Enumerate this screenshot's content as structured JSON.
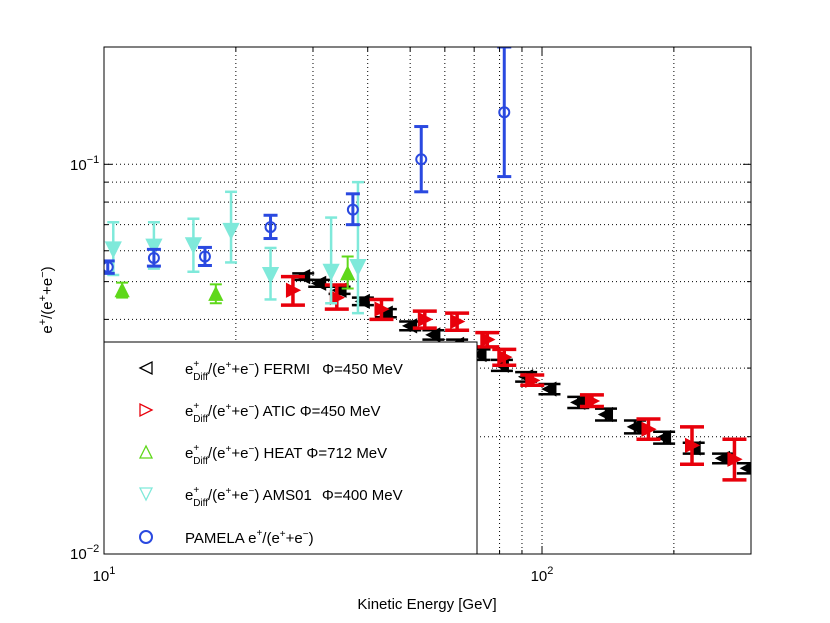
{
  "chart_data": {
    "type": "scatter",
    "xscale": "log",
    "yscale": "log",
    "xlim": [
      10,
      300
    ],
    "ylim": [
      0.01,
      0.2
    ],
    "xlabel": "Kinetic Energy [GeV]",
    "ylabel_parts": {
      "a": "e",
      "a_sup": "+",
      "b": "/(e",
      "b_sup1": "+",
      "c": "+e",
      "c_sup": "−",
      "d": ")"
    },
    "x_tick_labels": [
      {
        "base": "10",
        "exp": "1",
        "value": 10
      },
      {
        "base": "10",
        "exp": "2",
        "value": 100
      }
    ],
    "y_tick_labels": [
      {
        "base": "10",
        "exp": "−2",
        "value": 0.01
      },
      {
        "base": "10",
        "exp": "−1",
        "value": 0.1
      }
    ],
    "grid": true,
    "legend_position": "lower-left",
    "series": [
      {
        "name": "FERMI",
        "marker": "triangle-left",
        "color": "#000000",
        "label": {
          "main": "e",
          "sup": "+",
          "sub": "Diff",
          "rest": "/(e",
          "rest_sup": "+",
          "rest2": "+e",
          "rest2_sup": "−",
          "rest3": ") FERMI",
          "phi": "Φ=450 MeV"
        },
        "points": [
          {
            "x": 28.5,
            "y": 0.0515,
            "lo": 0.0505,
            "hi": 0.0525
          },
          {
            "x": 31.0,
            "y": 0.0495,
            "lo": 0.0485,
            "hi": 0.0505
          },
          {
            "x": 34.5,
            "y": 0.0475,
            "lo": 0.0465,
            "hi": 0.0485
          },
          {
            "x": 39.0,
            "y": 0.0445,
            "lo": 0.0435,
            "hi": 0.0455
          },
          {
            "x": 44.0,
            "y": 0.0415,
            "lo": 0.0405,
            "hi": 0.0425
          },
          {
            "x": 50.0,
            "y": 0.0385,
            "lo": 0.0375,
            "hi": 0.0395
          },
          {
            "x": 56.5,
            "y": 0.0365,
            "lo": 0.0355,
            "hi": 0.0375
          },
          {
            "x": 64.0,
            "y": 0.0345,
            "lo": 0.0335,
            "hi": 0.0355
          },
          {
            "x": 72.0,
            "y": 0.0325,
            "lo": 0.0315,
            "hi": 0.0335
          },
          {
            "x": 81.0,
            "y": 0.0305,
            "lo": 0.0295,
            "hi": 0.0315
          },
          {
            "x": 92.0,
            "y": 0.0285,
            "lo": 0.0277,
            "hi": 0.0293
          },
          {
            "x": 104.0,
            "y": 0.0265,
            "lo": 0.0257,
            "hi": 0.0273
          },
          {
            "x": 121.0,
            "y": 0.0245,
            "lo": 0.0237,
            "hi": 0.0253
          },
          {
            "x": 140.0,
            "y": 0.0228,
            "lo": 0.022,
            "hi": 0.0236
          },
          {
            "x": 163.0,
            "y": 0.0212,
            "lo": 0.0204,
            "hi": 0.022
          },
          {
            "x": 190.0,
            "y": 0.0199,
            "lo": 0.0192,
            "hi": 0.0206
          },
          {
            "x": 222.0,
            "y": 0.0187,
            "lo": 0.0181,
            "hi": 0.0193
          },
          {
            "x": 259.0,
            "y": 0.0176,
            "lo": 0.0171,
            "hi": 0.0181
          },
          {
            "x": 295.0,
            "y": 0.0166,
            "lo": 0.0161,
            "hi": 0.0171
          }
        ]
      },
      {
        "name": "ATIC",
        "marker": "triangle-right",
        "color": "#e8000b",
        "label": {
          "main": "e",
          "sup": "+",
          "sub": "Diff",
          "rest": "/(e",
          "rest_sup": "+",
          "rest2": "+e",
          "rest2_sup": "−",
          "rest3": ") ATIC",
          "phi": "Φ=450 MeV"
        },
        "points": [
          {
            "x": 27.0,
            "y": 0.0475,
            "lo": 0.0435,
            "hi": 0.0515
          },
          {
            "x": 34.0,
            "y": 0.0455,
            "lo": 0.0425,
            "hi": 0.049
          },
          {
            "x": 43.0,
            "y": 0.0425,
            "lo": 0.04,
            "hi": 0.045
          },
          {
            "x": 54.0,
            "y": 0.04,
            "lo": 0.038,
            "hi": 0.042
          },
          {
            "x": 64.0,
            "y": 0.0395,
            "lo": 0.0375,
            "hi": 0.0415
          },
          {
            "x": 75.0,
            "y": 0.0355,
            "lo": 0.034,
            "hi": 0.037
          },
          {
            "x": 82.0,
            "y": 0.032,
            "lo": 0.0305,
            "hi": 0.0335
          },
          {
            "x": 95.0,
            "y": 0.0279,
            "lo": 0.0271,
            "hi": 0.0288
          },
          {
            "x": 130.0,
            "y": 0.0247,
            "lo": 0.0239,
            "hi": 0.0256
          },
          {
            "x": 175.0,
            "y": 0.0209,
            "lo": 0.0197,
            "hi": 0.0222
          },
          {
            "x": 220.0,
            "y": 0.019,
            "lo": 0.017,
            "hi": 0.0212
          },
          {
            "x": 275.0,
            "y": 0.0175,
            "lo": 0.0155,
            "hi": 0.0197
          }
        ]
      },
      {
        "name": "HEAT",
        "marker": "triangle-up",
        "color": "#5fd81a",
        "label": {
          "main": "e",
          "sup": "+",
          "sub": "Diff",
          "rest": "/(e",
          "rest_sup": "+",
          "rest2": "+e",
          "rest2_sup": "−",
          "rest3": ") HEAT",
          "phi": "Φ=712 MeV"
        },
        "points": [
          {
            "x": 11.0,
            "y": 0.0475,
            "lo": 0.0455,
            "hi": 0.0497
          },
          {
            "x": 18.0,
            "y": 0.0465,
            "lo": 0.044,
            "hi": 0.0492
          },
          {
            "x": 36.0,
            "y": 0.0525,
            "lo": 0.048,
            "hi": 0.058
          }
        ]
      },
      {
        "name": "AMS01",
        "marker": "triangle-down",
        "color": "#7fe9da",
        "label": {
          "main": "e",
          "sup": "+",
          "sub": "Diff",
          "rest": "/(e",
          "rest_sup": "+",
          "rest2": "+e",
          "rest2_sup": "−",
          "rest3": ") AMS01",
          "phi": "Φ=400 MeV"
        },
        "points": [
          {
            "x": 10.5,
            "y": 0.0605,
            "lo": 0.052,
            "hi": 0.071
          },
          {
            "x": 13.0,
            "y": 0.0615,
            "lo": 0.054,
            "hi": 0.071
          },
          {
            "x": 16.0,
            "y": 0.062,
            "lo": 0.053,
            "hi": 0.0725
          },
          {
            "x": 19.5,
            "y": 0.0675,
            "lo": 0.056,
            "hi": 0.085
          },
          {
            "x": 24.0,
            "y": 0.052,
            "lo": 0.045,
            "hi": 0.061
          },
          {
            "x": 33.0,
            "y": 0.053,
            "lo": 0.044,
            "hi": 0.073
          },
          {
            "x": 38.0,
            "y": 0.0545,
            "lo": 0.0415,
            "hi": 0.09
          }
        ]
      },
      {
        "name": "PAMELA",
        "marker": "circle",
        "color": "#2a49e0",
        "label": {
          "main": "PAMELA e",
          "sup": "+",
          "rest": "/(e",
          "rest_sup": "+",
          "rest2": "+e",
          "rest2_sup": "−",
          "rest3": ")"
        },
        "points": [
          {
            "x": 10.2,
            "y": 0.0545,
            "lo": 0.0525,
            "hi": 0.0565
          },
          {
            "x": 13.0,
            "y": 0.0575,
            "lo": 0.0548,
            "hi": 0.0605
          },
          {
            "x": 17.0,
            "y": 0.058,
            "lo": 0.055,
            "hi": 0.0612
          },
          {
            "x": 24.0,
            "y": 0.069,
            "lo": 0.0645,
            "hi": 0.074
          },
          {
            "x": 37.0,
            "y": 0.0765,
            "lo": 0.07,
            "hi": 0.084
          },
          {
            "x": 53.0,
            "y": 0.103,
            "lo": 0.085,
            "hi": 0.125
          },
          {
            "x": 82.0,
            "y": 0.136,
            "lo": 0.093,
            "hi": 0.2
          }
        ]
      }
    ]
  }
}
